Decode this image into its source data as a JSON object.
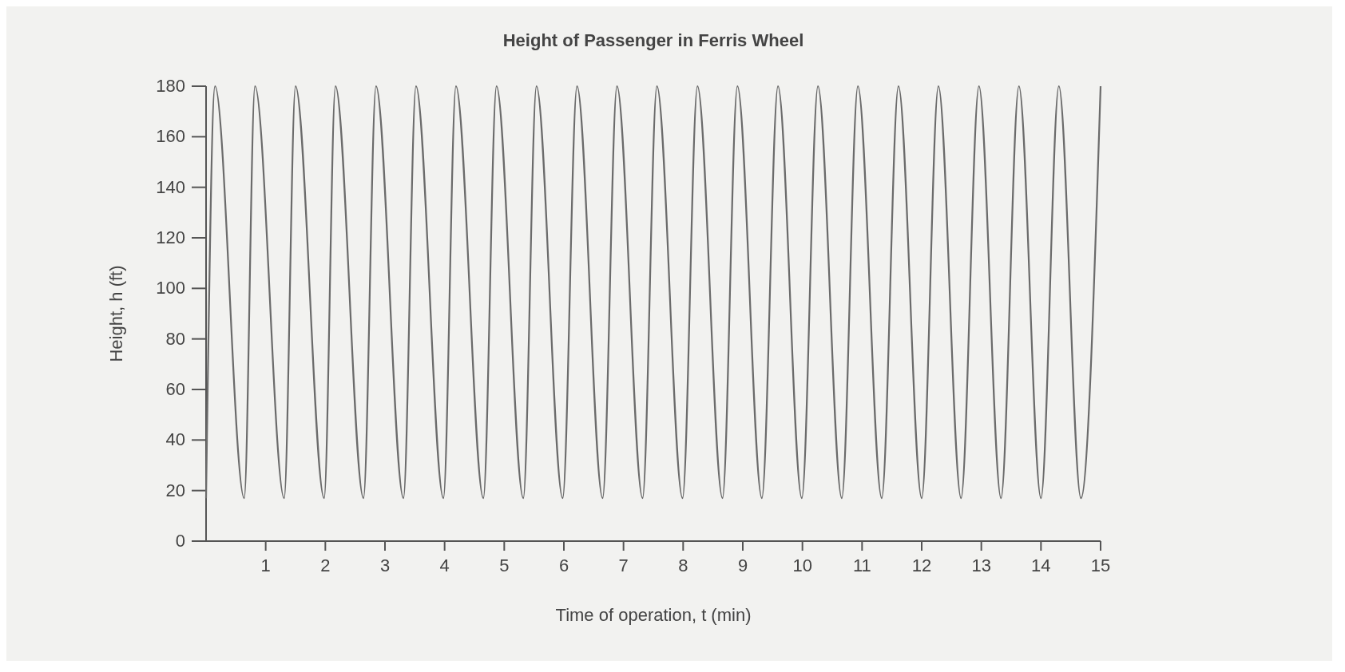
{
  "chart_data": {
    "type": "line",
    "title": "Height of Passenger in Ferris Wheel",
    "xlabel": "Time of operation, t (min)",
    "ylabel": "Height, h (ft)",
    "xlim": [
      0,
      15
    ],
    "xticks": [
      1,
      2,
      3,
      4,
      5,
      6,
      7,
      8,
      9,
      10,
      11,
      12,
      13,
      14,
      15
    ],
    "ylim": [
      0,
      180
    ],
    "yticks": [
      0,
      20,
      40,
      60,
      80,
      100,
      120,
      140,
      160,
      180
    ],
    "grid": false,
    "marker": "none",
    "line_style": "solid",
    "series": [
      {
        "color": "#6b6b6b",
        "x": [
          0,
          0.15,
          0.64,
          0.82,
          1.31,
          1.5,
          1.98,
          2.17,
          2.64,
          2.85,
          3.31,
          3.52,
          3.98,
          4.19,
          4.65,
          4.87,
          5.32,
          5.54,
          5.98,
          6.22,
          6.65,
          6.89,
          7.32,
          7.56,
          7.99,
          8.24,
          8.66,
          8.91,
          9.32,
          9.59,
          9.99,
          10.26,
          10.66,
          10.93,
          11.33,
          11.61,
          12,
          12.28,
          12.66,
          12.96,
          13.33,
          13.63,
          14,
          14.3,
          14.67,
          15
        ],
        "values": [
          17,
          180,
          17,
          180,
          17,
          180,
          17,
          180,
          17,
          180,
          17,
          180,
          17,
          180,
          17,
          180,
          17,
          180,
          17,
          180,
          17,
          180,
          17,
          180,
          17,
          180,
          17,
          180,
          17,
          180,
          17,
          180,
          17,
          180,
          17,
          180,
          17,
          180,
          17,
          180,
          17,
          180,
          17,
          180,
          17,
          180
        ]
      }
    ]
  }
}
